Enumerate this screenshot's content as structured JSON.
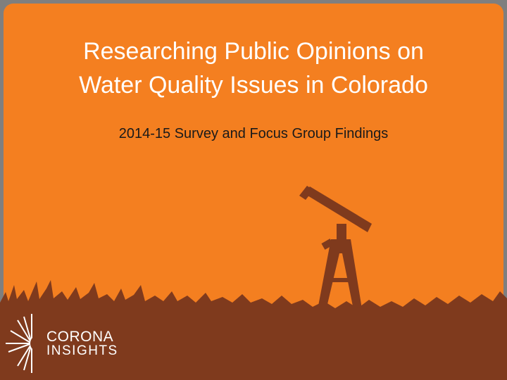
{
  "slide": {
    "title": [
      "Researching Public Opinions on",
      "Water Quality Issues in Colorado"
    ],
    "subtitle": "2014-15 Survey and Focus Group Findings",
    "logo": [
      "CORONA",
      "INSIGHTS"
    ]
  }
}
